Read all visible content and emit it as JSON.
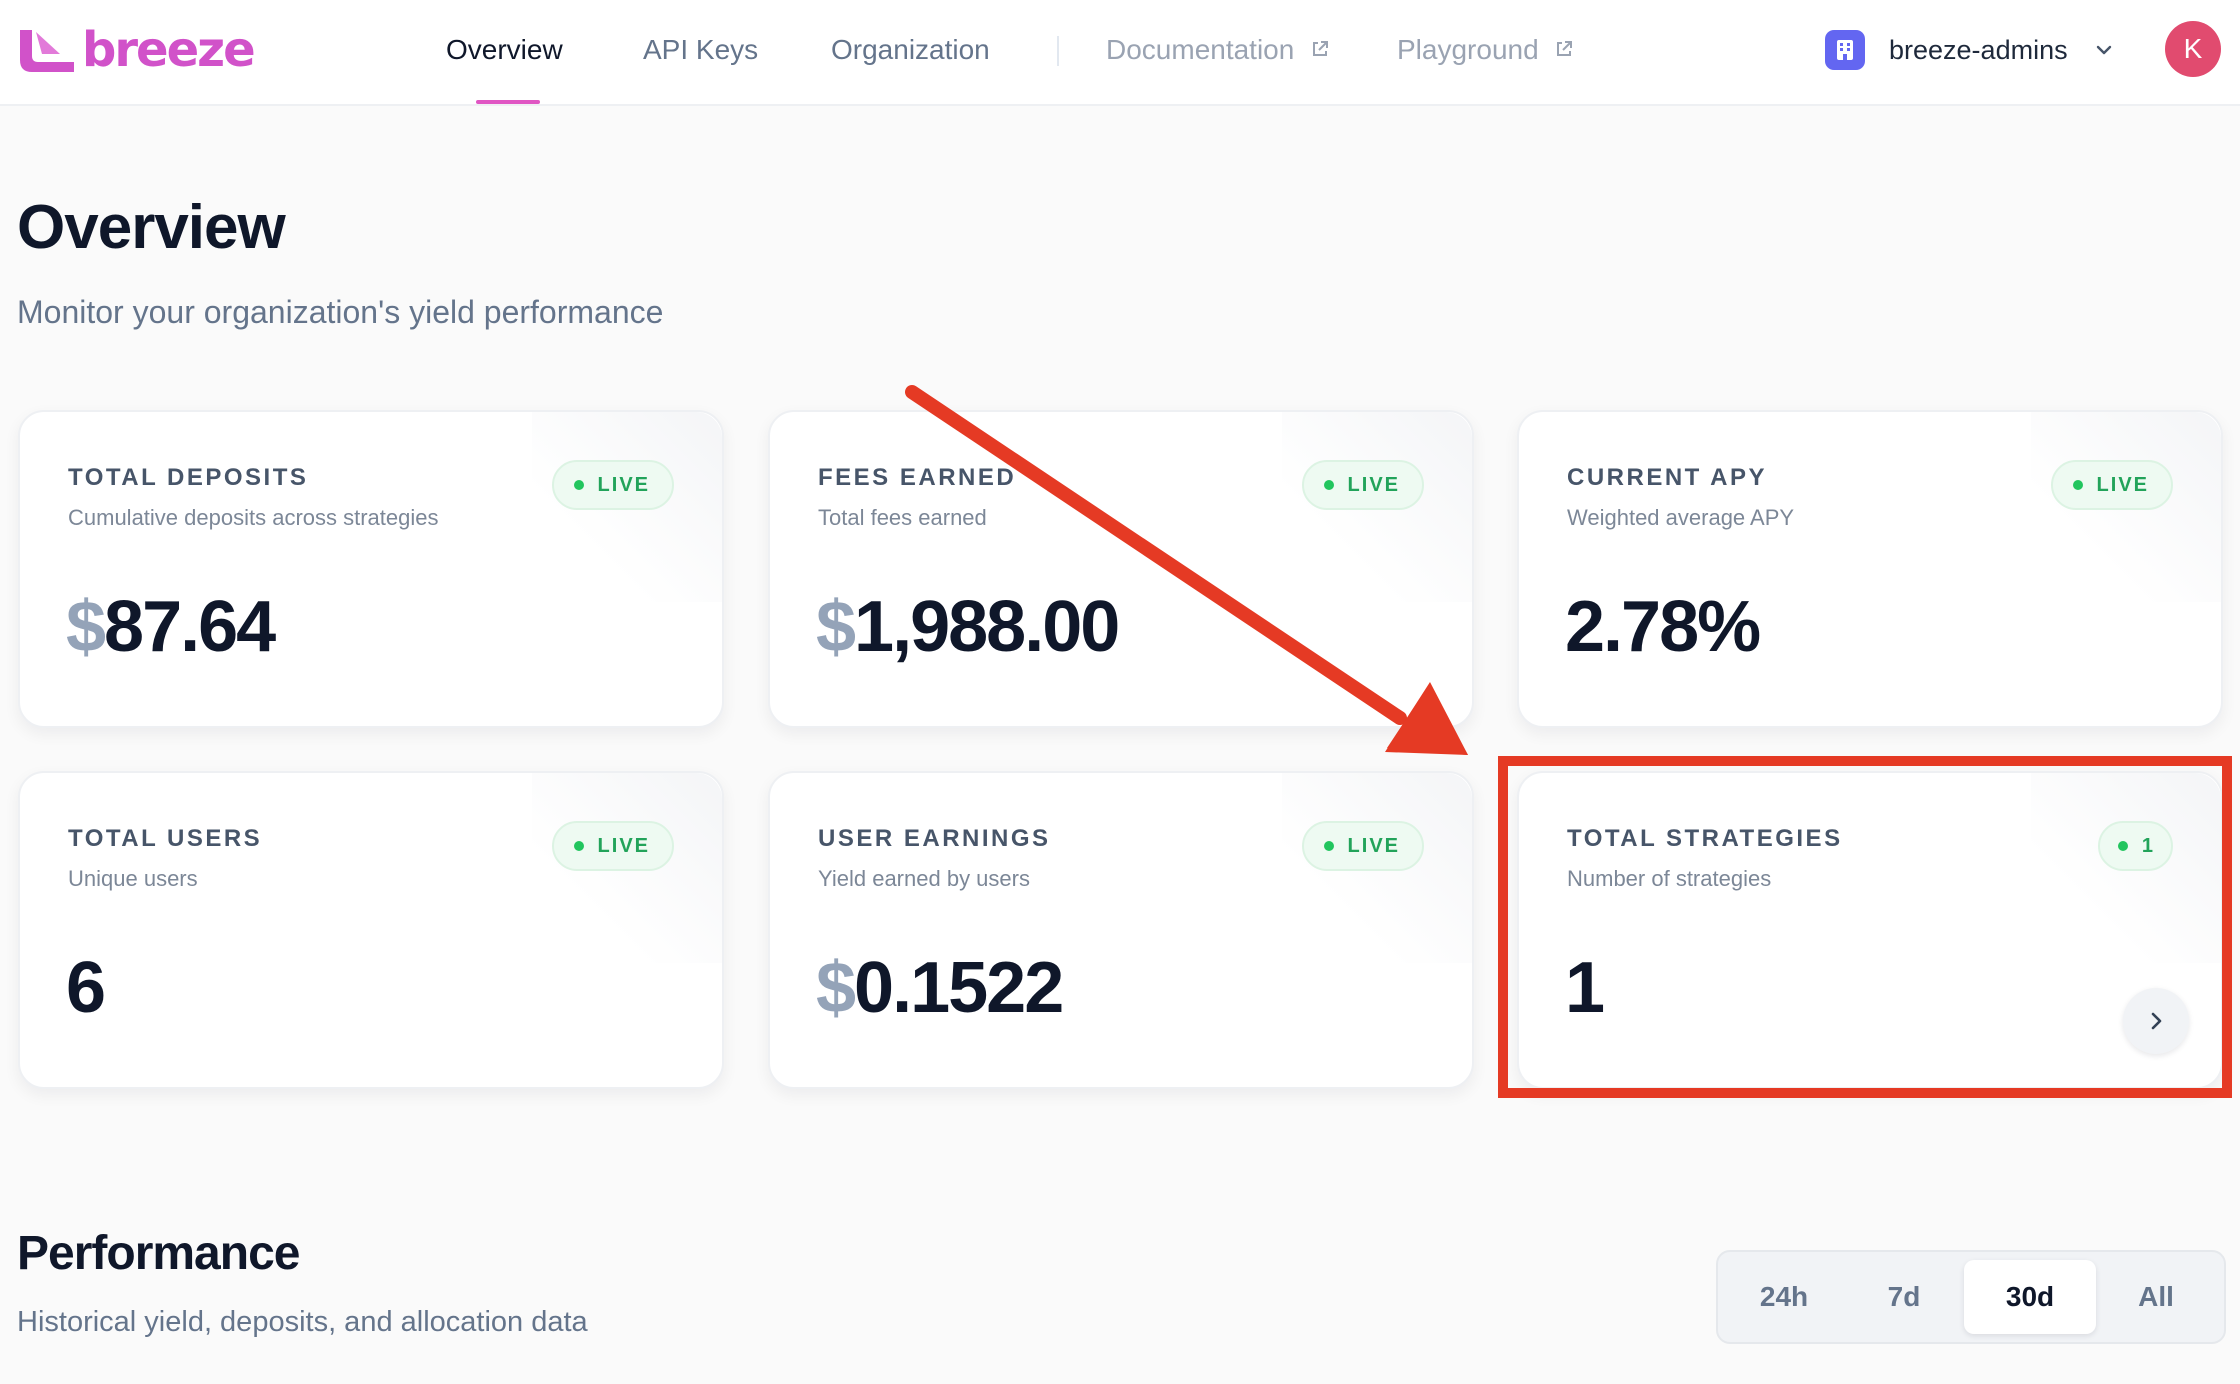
{
  "brand": {
    "name": "breeze",
    "color": "#d152c9"
  },
  "nav": {
    "items": [
      {
        "label": "Overview",
        "active": true
      },
      {
        "label": "API Keys",
        "active": false
      },
      {
        "label": "Organization",
        "active": false
      }
    ],
    "external": [
      {
        "label": "Documentation",
        "icon": "external-link-icon"
      },
      {
        "label": "Playground",
        "icon": "external-link-icon"
      }
    ],
    "org": {
      "name": "breeze-admins",
      "icon": "building-icon"
    },
    "avatar": {
      "initial": "K",
      "color": "#e14b6f"
    }
  },
  "page": {
    "title": "Overview",
    "subtitle": "Monitor your organization's yield performance"
  },
  "cards": [
    {
      "label": "TOTAL DEPOSITS",
      "desc": "Cumulative deposits across strategies",
      "currency": "$",
      "value": "87.64",
      "badge": "LIVE"
    },
    {
      "label": "FEES EARNED",
      "desc": "Total fees earned",
      "currency": "$",
      "value": "1,988.00",
      "badge": "LIVE"
    },
    {
      "label": "CURRENT APY",
      "desc": "Weighted average APY",
      "currency": "",
      "value": "2.78%",
      "badge": "LIVE"
    },
    {
      "label": "TOTAL USERS",
      "desc": "Unique users",
      "currency": "",
      "value": "6",
      "badge": "LIVE"
    },
    {
      "label": "USER EARNINGS",
      "desc": "Yield earned by users",
      "currency": "$",
      "value": "0.1522",
      "badge": "LIVE"
    },
    {
      "label": "TOTAL STRATEGIES",
      "desc": "Number of strategies",
      "currency": "",
      "value": "1",
      "badge": "1"
    }
  ],
  "performance": {
    "title": "Performance",
    "subtitle": "Historical yield, deposits, and allocation data",
    "ranges": [
      "24h",
      "7d",
      "30d",
      "All"
    ],
    "selected_range": "30d"
  },
  "colors": {
    "live_green": "#22a35a",
    "annotation_red": "#e53a24",
    "accent_pink": "#e056c3"
  }
}
